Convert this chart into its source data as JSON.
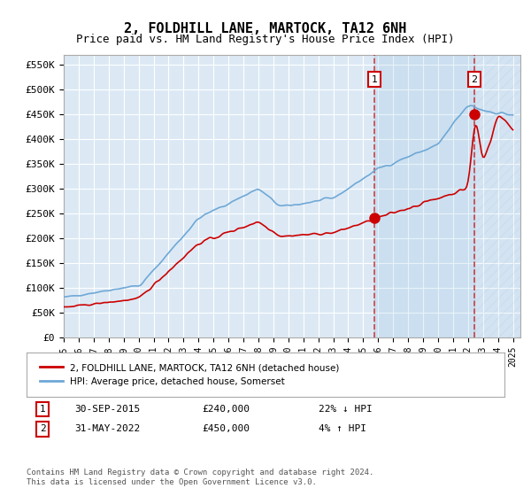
{
  "title": "2, FOLDHILL LANE, MARTOCK, TA12 6NH",
  "subtitle": "Price paid vs. HM Land Registry's House Price Index (HPI)",
  "title_fontsize": 11,
  "subtitle_fontsize": 9,
  "ylim": [
    0,
    570000
  ],
  "yticks": [
    0,
    50000,
    100000,
    150000,
    200000,
    250000,
    300000,
    350000,
    400000,
    450000,
    500000,
    550000
  ],
  "ytick_labels": [
    "£0",
    "£50K",
    "£100K",
    "£150K",
    "£200K",
    "£250K",
    "£300K",
    "£350K",
    "£400K",
    "£450K",
    "£500K",
    "£550K"
  ],
  "hpi_color": "#6fa8d6",
  "price_color": "#cc0000",
  "bg_color": "#dce9f5",
  "grid_color": "#ffffff",
  "purchase1_date": 2015.75,
  "purchase1_price": 240000,
  "purchase2_date": 2022.42,
  "purchase2_price": 450000,
  "legend_entries": [
    "2, FOLDHILL LANE, MARTOCK, TA12 6NH (detached house)",
    "HPI: Average price, detached house, Somerset"
  ],
  "annotation1": [
    "1",
    "30-SEP-2015",
    "£240,000",
    "22% ↓ HPI"
  ],
  "annotation2": [
    "2",
    "31-MAY-2022",
    "£450,000",
    "4% ↑ HPI"
  ],
  "footer": "Contains HM Land Registry data © Crown copyright and database right 2024.\nThis data is licensed under the Open Government Licence v3.0.",
  "hatch_color": "#cc0000"
}
